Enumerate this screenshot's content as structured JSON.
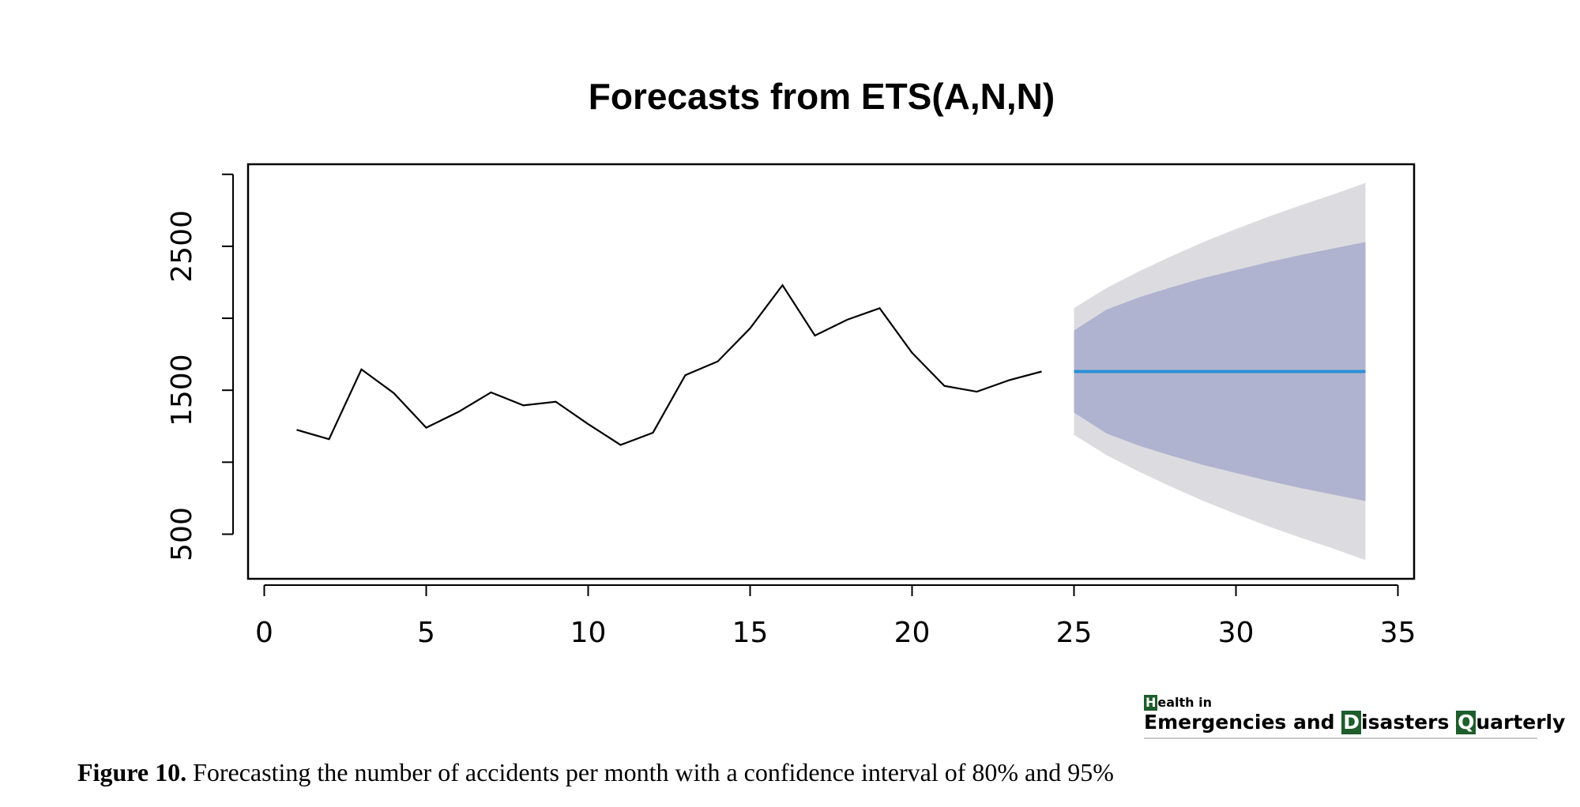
{
  "chart_data": {
    "type": "line",
    "title": "Forecasts from ETS(A,N,N)",
    "xlabel": "",
    "ylabel": "",
    "xlim": [
      -0.5,
      35.5
    ],
    "ylim": [
      190,
      3070
    ],
    "x_ticks": [
      0,
      5,
      10,
      15,
      20,
      25,
      30,
      35
    ],
    "y_ticks": [
      500,
      1000,
      1500,
      2000,
      2500,
      3000
    ],
    "y_tick_labels": [
      "500",
      "",
      "1500",
      "",
      "2500",
      ""
    ],
    "grid": false,
    "series": [
      {
        "x": [
          1,
          2,
          3,
          4,
          5,
          6,
          7,
          8,
          9,
          10,
          11,
          12,
          13,
          14,
          15,
          16,
          17,
          18,
          19,
          20,
          21,
          22,
          23,
          24
        ],
        "values": [
          1225,
          1160,
          1645,
          1480,
          1240,
          1350,
          1485,
          1395,
          1420,
          1265,
          1120,
          1205,
          1605,
          1700,
          1930,
          2230,
          1880,
          1990,
          2070,
          1760,
          1530,
          1490,
          1570,
          1630
        ],
        "color": "#000000"
      },
      {
        "x": [
          25,
          34
        ],
        "values": [
          1630,
          1630
        ],
        "color": "#2a8fd6"
      }
    ],
    "intervals": {
      "x": [
        25,
        26,
        27,
        28,
        29,
        30,
        31,
        32,
        33,
        34
      ],
      "lower_95": [
        1190,
        1050,
        935,
        830,
        730,
        640,
        555,
        475,
        400,
        320
      ],
      "upper_95": [
        2070,
        2210,
        2325,
        2430,
        2530,
        2620,
        2705,
        2785,
        2860,
        2940
      ],
      "lower_80": [
        1345,
        1200,
        1115,
        1045,
        980,
        925,
        870,
        820,
        775,
        730
      ],
      "upper_80": [
        1915,
        2060,
        2145,
        2215,
        2280,
        2335,
        2390,
        2440,
        2485,
        2530
      ],
      "color_95": "#dcdce0",
      "color_80": "#b0b3cf"
    }
  },
  "logo": {
    "line1_initial": "H",
    "line1_rest": "ealth in",
    "word1": "Emergencies and ",
    "initial2": "D",
    "word2": "isasters ",
    "initial3": "Q",
    "word3": "uarterly"
  },
  "caption": {
    "label": "Figure 10.",
    "text": " Forecasting the number of accidents per month with a confidence interval of 80% and 95%"
  }
}
